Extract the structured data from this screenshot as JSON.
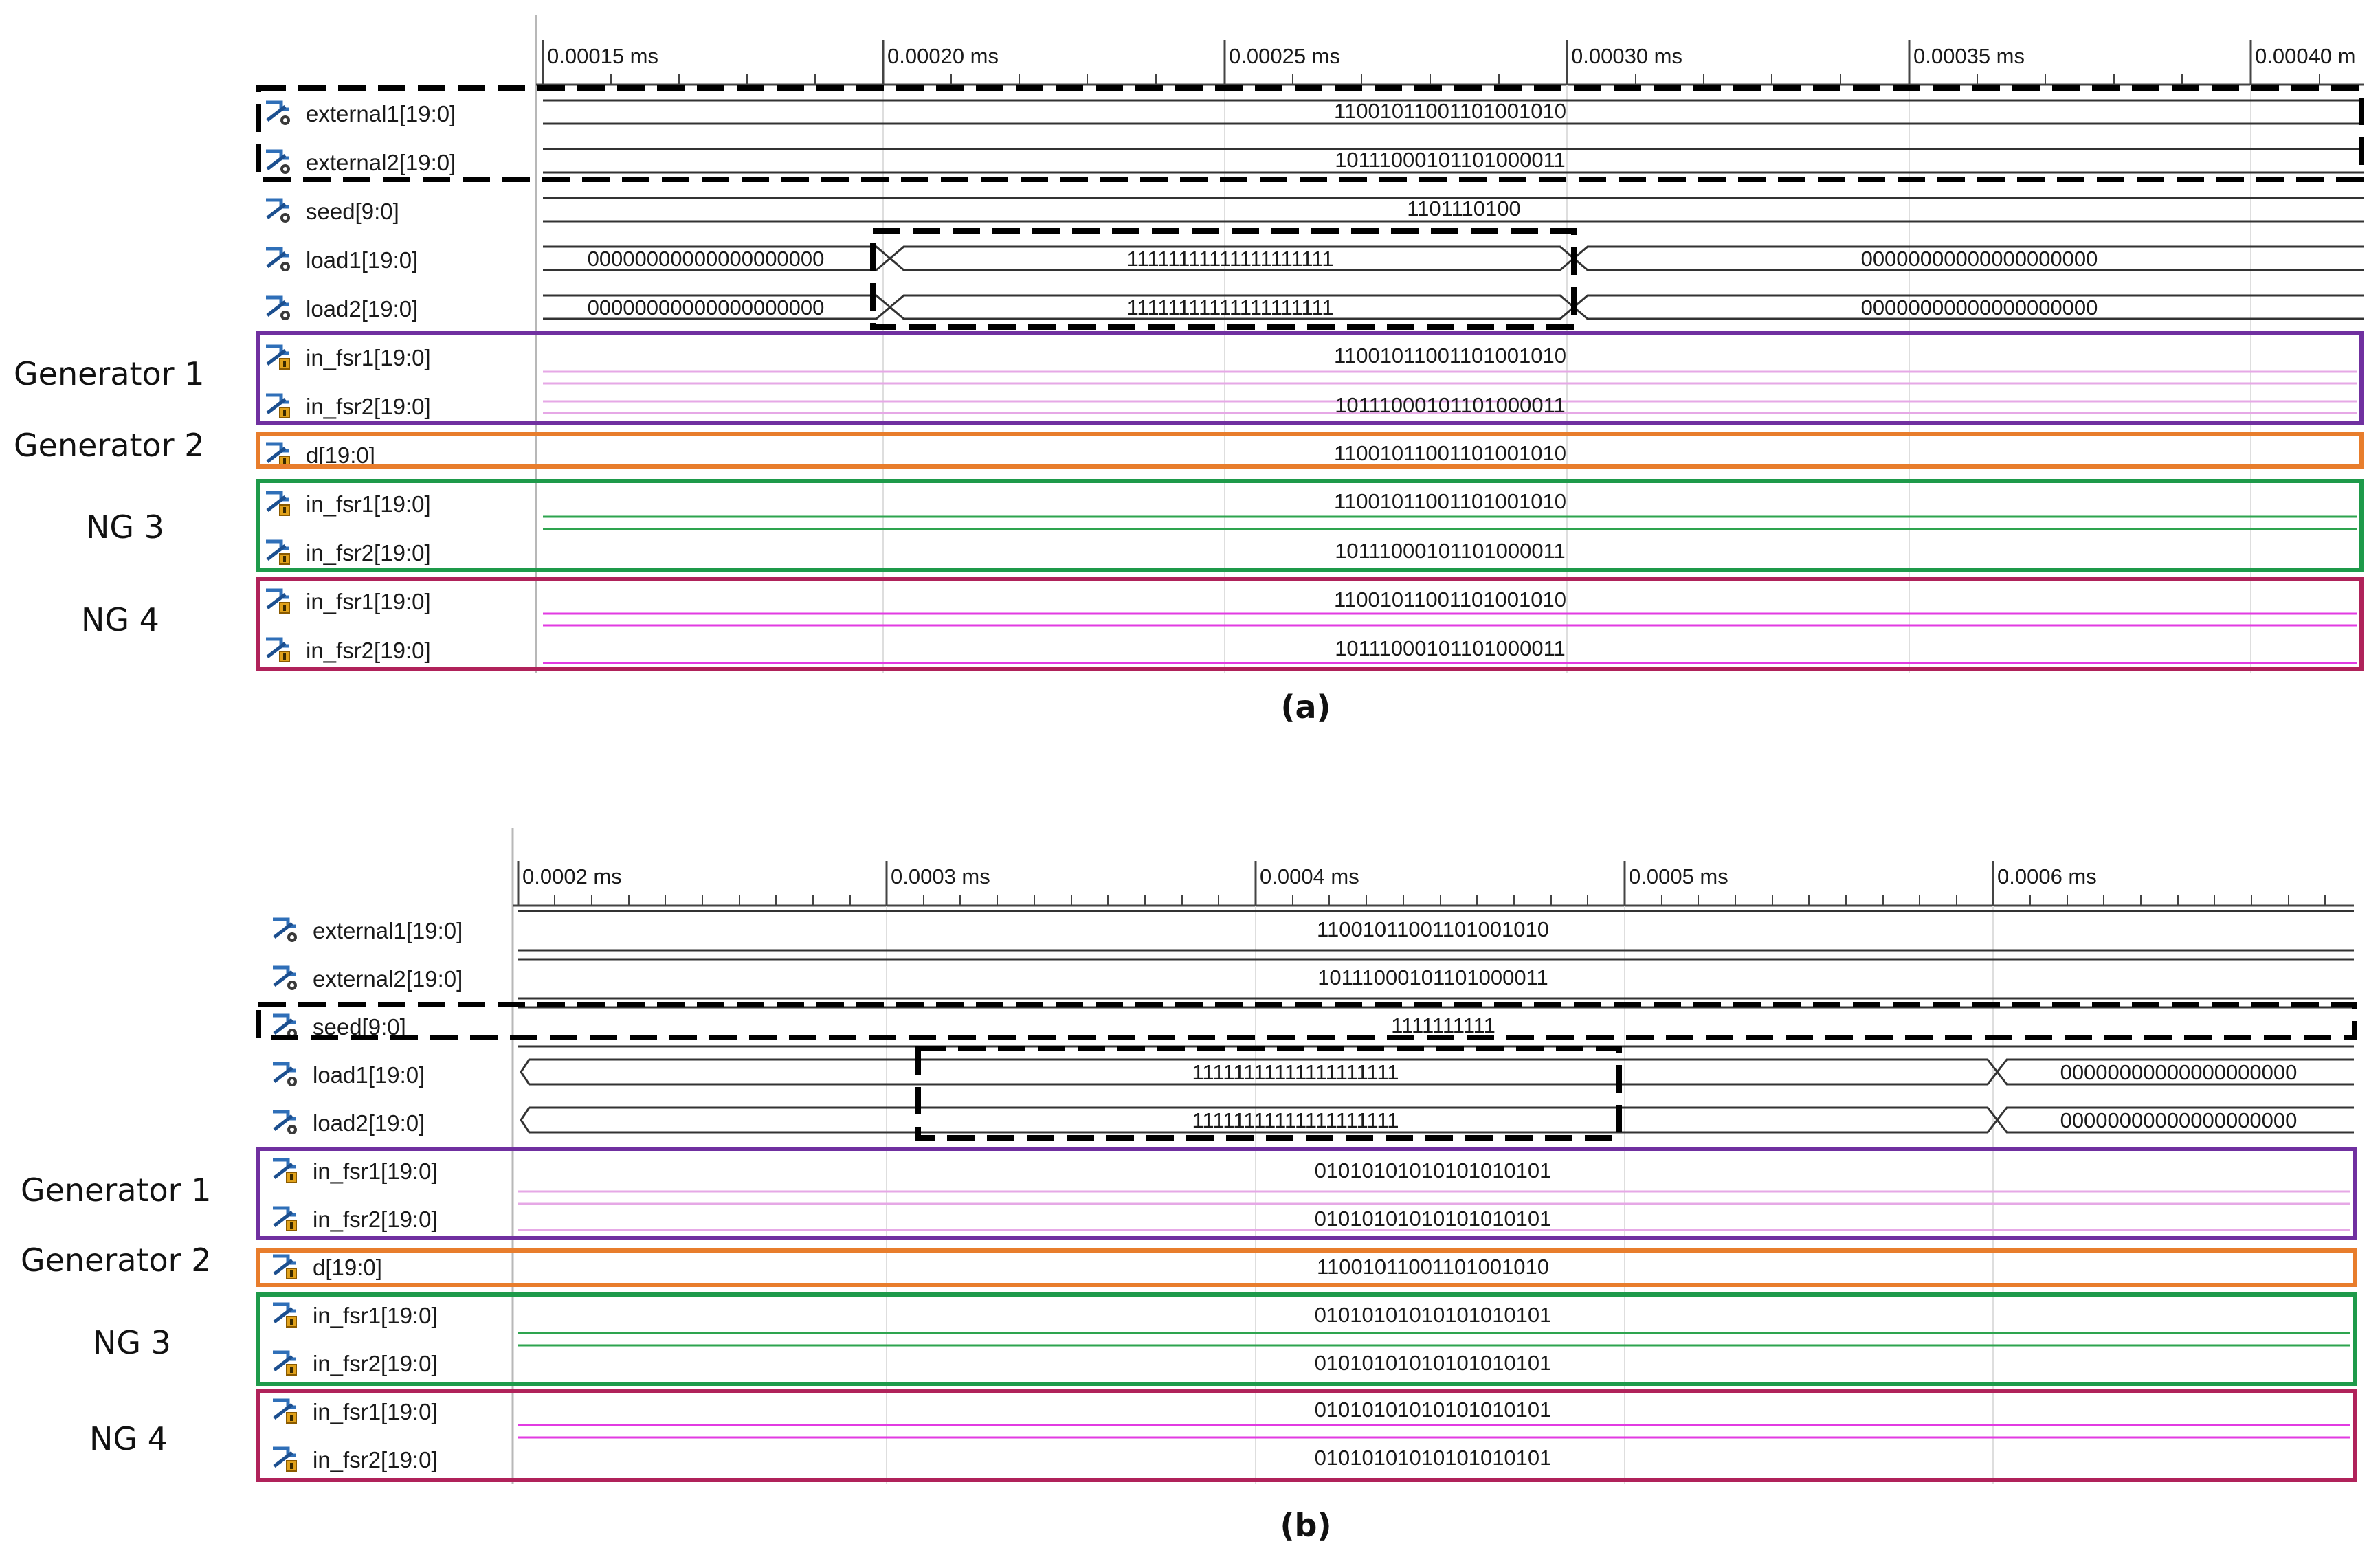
{
  "colors": {
    "generator1_box": "#7030a0",
    "generator2_box": "#e87d2c",
    "ng3_box": "#1e9a4a",
    "ng4_box": "#b0225a",
    "generator1_wave": "#e6a8e6",
    "ng3_wave": "#2ea44f",
    "ng4_wave": "#e23be2",
    "bus_wave": "#333333"
  },
  "icons": {
    "input_signal": "waveform-input-icon",
    "internal_signal": "waveform-internal-icon"
  },
  "panels": [
    {
      "caption": "(a)",
      "time_ticks": [
        "0.00015 ms",
        "0.00020 ms",
        "0.00025 ms",
        "0.00030 ms",
        "0.00035 ms",
        "0.00040 m"
      ],
      "rows": [
        {
          "name": "external1[19:0]",
          "segments": [
            {
              "value": "11001011001101001010"
            }
          ]
        },
        {
          "name": "external2[19:0]",
          "segments": [
            {
              "value": "10111000101101000011"
            }
          ]
        },
        {
          "name": "seed[9:0]",
          "segments": [
            {
              "value": "1101110100"
            }
          ]
        },
        {
          "name": "load1[19:0]",
          "segments": [
            {
              "value": "00000000000000000000"
            },
            {
              "value": "11111111111111111111"
            },
            {
              "value": "00000000000000000000"
            }
          ]
        },
        {
          "name": "load2[19:0]",
          "segments": [
            {
              "value": "00000000000000000000"
            },
            {
              "value": "11111111111111111111"
            },
            {
              "value": "00000000000000000000"
            }
          ]
        },
        {
          "name": "in_fsr1[19:0]",
          "segments": [
            {
              "value": "11001011001101001010"
            }
          ]
        },
        {
          "name": "in_fsr2[19:0]",
          "segments": [
            {
              "value": "10111000101101000011"
            }
          ]
        },
        {
          "name": "d[19:0]",
          "segments": [
            {
              "value": "11001011001101001010"
            }
          ]
        },
        {
          "name": "in_fsr1[19:0]",
          "segments": [
            {
              "value": "11001011001101001010"
            }
          ]
        },
        {
          "name": "in_fsr2[19:0]",
          "segments": [
            {
              "value": "10111000101101000011"
            }
          ]
        },
        {
          "name": "in_fsr1[19:0]",
          "segments": [
            {
              "value": "11001011001101001010"
            }
          ]
        },
        {
          "name": "in_fsr2[19:0]",
          "segments": [
            {
              "value": "10111000101101000011"
            }
          ]
        }
      ],
      "groups": [
        "Generator 1",
        "Generator 2",
        "NG 3",
        "NG 4"
      ]
    },
    {
      "caption": "(b)",
      "time_ticks": [
        "0.0002 ms",
        "0.0003 ms",
        "0.0004 ms",
        "0.0005 ms",
        "0.0006 ms"
      ],
      "rows": [
        {
          "name": "external1[19:0]",
          "segments": [
            {
              "value": "11001011001101001010"
            }
          ]
        },
        {
          "name": "external2[19:0]",
          "segments": [
            {
              "value": "10111000101101000011"
            }
          ]
        },
        {
          "name": "seed[9:0]",
          "segments": [
            {
              "value": "1111111111"
            }
          ]
        },
        {
          "name": "load1[19:0]",
          "segments": [
            {
              "value": "11111111111111111111"
            },
            {
              "value": "00000000000000000000"
            }
          ]
        },
        {
          "name": "load2[19:0]",
          "segments": [
            {
              "value": "11111111111111111111"
            },
            {
              "value": "00000000000000000000"
            }
          ]
        },
        {
          "name": "in_fsr1[19:0]",
          "segments": [
            {
              "value": "01010101010101010101"
            }
          ]
        },
        {
          "name": "in_fsr2[19:0]",
          "segments": [
            {
              "value": "01010101010101010101"
            }
          ]
        },
        {
          "name": "d[19:0]",
          "segments": [
            {
              "value": "11001011001101001010"
            }
          ]
        },
        {
          "name": "in_fsr1[19:0]",
          "segments": [
            {
              "value": "01010101010101010101"
            }
          ]
        },
        {
          "name": "in_fsr2[19:0]",
          "segments": [
            {
              "value": "01010101010101010101"
            }
          ]
        },
        {
          "name": "in_fsr1[19:0]",
          "segments": [
            {
              "value": "01010101010101010101"
            }
          ]
        },
        {
          "name": "in_fsr2[19:0]",
          "segments": [
            {
              "value": "01010101010101010101"
            }
          ]
        }
      ],
      "groups": [
        "Generator 1",
        "Generator 2",
        "NG 3",
        "NG 4"
      ]
    }
  ]
}
